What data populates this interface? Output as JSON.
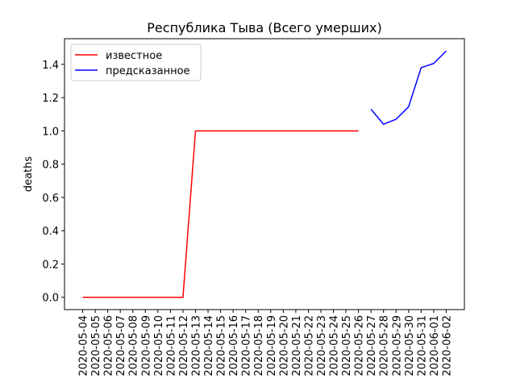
{
  "chart_data": {
    "type": "line",
    "title": "Республика Тыва (Всего умерших)",
    "y_label": "deaths",
    "x": [
      "2020-05-04",
      "2020-05-05",
      "2020-05-06",
      "2020-05-07",
      "2020-05-08",
      "2020-05-09",
      "2020-05-10",
      "2020-05-11",
      "2020-05-12",
      "2020-05-13",
      "2020-05-14",
      "2020-05-15",
      "2020-05-16",
      "2020-05-17",
      "2020-05-18",
      "2020-05-19",
      "2020-05-20",
      "2020-05-21",
      "2020-05-22",
      "2020-05-23",
      "2020-05-24",
      "2020-05-25",
      "2020-05-26",
      "2020-05-27",
      "2020-05-28",
      "2020-05-29",
      "2020-05-30",
      "2020-05-31",
      "2020-06-01",
      "2020-06-02"
    ],
    "series": [
      {
        "name": "известное",
        "color": "#ff0000",
        "values": [
          0,
          0,
          0,
          0,
          0,
          0,
          0,
          0,
          0,
          1,
          1,
          1,
          1,
          1,
          1,
          1,
          1,
          1,
          1,
          1,
          1,
          1,
          1,
          null,
          null,
          null,
          null,
          null,
          null,
          null
        ]
      },
      {
        "name": "предсказанное",
        "color": "#0000ff",
        "values": [
          null,
          null,
          null,
          null,
          null,
          null,
          null,
          null,
          null,
          null,
          null,
          null,
          null,
          null,
          null,
          null,
          null,
          null,
          null,
          null,
          null,
          null,
          null,
          1.13,
          1.04,
          1.07,
          1.145,
          1.38,
          1.405,
          1.48
        ]
      }
    ],
    "ylim": [
      -0.074,
      1.554
    ],
    "yticks": [
      {
        "value": 0,
        "label": "0.0"
      },
      0.2,
      0.4,
      0.6,
      0.8,
      {
        "value": 1,
        "label": "1.0"
      },
      1.2,
      1.4
    ],
    "legend": "upper left",
    "grid": false
  }
}
